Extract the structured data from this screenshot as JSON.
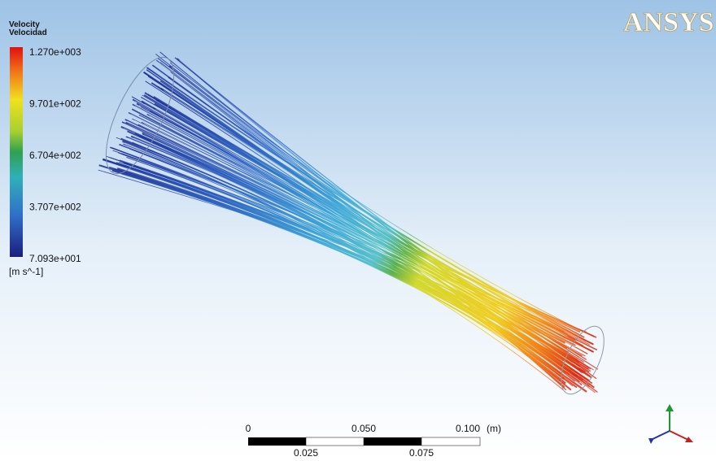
{
  "logo": "ANSYS",
  "legend": {
    "title": "Velocity",
    "subtitle": "Velocidad",
    "labels": [
      "1.270e+003",
      "9.701e+002",
      "6.704e+002",
      "3.707e+002",
      "7.093e+001"
    ],
    "unit": "[m s^-1]"
  },
  "scale": {
    "top_labels": [
      "0",
      "0.050",
      "0.100"
    ],
    "unit": "(m)",
    "bottom_labels": [
      "0.025",
      "0.075"
    ]
  }
}
